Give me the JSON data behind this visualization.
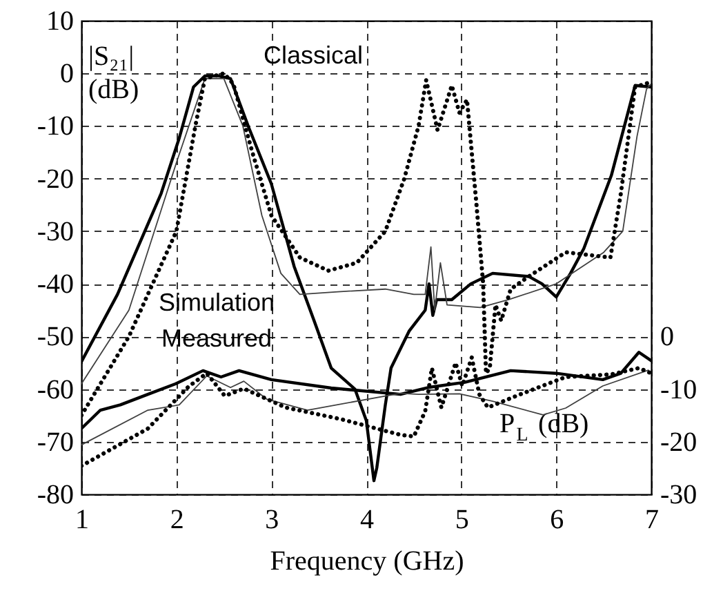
{
  "chart_data": {
    "type": "line",
    "xlabel": "Frequency (GHz)",
    "ylabel": "|S₂₁| (dB)",
    "y2label": "P$_{L}$ (dB)",
    "xlim": [
      1,
      7
    ],
    "xticks": [
      {
        "value": 1,
        "label": "1"
      },
      {
        "value": 2,
        "label": "2"
      },
      {
        "value": 3,
        "label": "3"
      },
      {
        "value": 4,
        "label": "4"
      },
      {
        "value": 5,
        "label": "5"
      },
      {
        "value": 6,
        "label": "6"
      },
      {
        "value": 7,
        "label": "7"
      }
    ],
    "ylim": [
      -80,
      10
    ],
    "yticks": [
      10,
      0,
      -10,
      -20,
      -30,
      -40,
      -50,
      -60,
      -70,
      -80
    ],
    "y2lim": [
      -30,
      60
    ],
    "y2ticks": [
      0,
      -10,
      -20,
      -30
    ],
    "grid": true,
    "annotations": [
      "Classical",
      "Simulation",
      "Measured"
    ],
    "series": [
      {
        "color": "#000000",
        "line_style": "solid",
        "x": [
          1,
          1.38,
          1.84,
          2.03,
          2.18,
          2.3,
          2.45,
          2.57,
          2.76,
          3.0,
          3.24,
          3.45,
          3.63,
          3.88,
          4.0,
          4.08,
          4.11,
          4.2,
          4.26,
          4.45,
          4.62,
          4.66,
          4.7,
          4.74,
          4.9,
          5.1,
          5.33,
          5.71,
          5.85,
          6.0,
          6.15,
          6.29,
          6.58,
          6.83,
          7
        ],
        "values": [
          -54.8,
          -42,
          -22.8,
          -12.3,
          -2.6,
          -0.5,
          -0.5,
          -1,
          -10.2,
          -21,
          -36.7,
          -47,
          -56,
          -60,
          -66,
          -77.4,
          -75,
          -63,
          -56,
          -49,
          -45,
          -40,
          -46,
          -43,
          -43,
          -40,
          -38,
          -38.6,
          -40,
          -42.5,
          -38,
          -33.3,
          -19.4,
          -2.3,
          -2.6
        ]
      },
      {
        "color": "#404040",
        "line_style": "solid",
        "x": [
          1,
          1.5,
          2,
          2.3,
          2.5,
          2.7,
          2.9,
          3.1,
          3.3,
          3.7,
          4.2,
          4.5,
          4.62,
          4.68,
          4.72,
          4.78,
          4.85,
          5.2,
          5.5,
          6.0,
          6.5,
          6.7,
          6.85,
          6.95,
          7
        ],
        "values": [
          -59,
          -45,
          -17,
          -1,
          -1,
          -10,
          -27,
          -38,
          -42,
          -41.5,
          -41,
          -42,
          -42,
          -33,
          -45,
          -36,
          -44,
          -44.5,
          -43,
          -40,
          -34,
          -30,
          -12,
          -3,
          -2
        ]
      },
      {
        "color": "#000000",
        "line_style": "dotted",
        "x": [
          1,
          1.5,
          2,
          2.2,
          2.3,
          2.5,
          2.6,
          2.8,
          3.0,
          3.3,
          3.6,
          3.9,
          4.2,
          4.4,
          4.55,
          4.63,
          4.75,
          4.9,
          4.98,
          5.06,
          5.16,
          5.23,
          5.26,
          5.3,
          5.36,
          5.42,
          5.52,
          5.71,
          6.1,
          6.57,
          6.68,
          6.83,
          6.97
        ],
        "values": [
          -65,
          -50,
          -30,
          -10,
          -1,
          0,
          -2,
          -15,
          -27,
          -35,
          -37.5,
          -36,
          -30,
          -20,
          -10,
          -1.3,
          -10.8,
          -2.3,
          -7.5,
          -5,
          -25,
          -40,
          -57,
          -56,
          -44,
          -47,
          -41,
          -38.6,
          -34,
          -35,
          -22.8,
          -2.6,
          -1.8
        ]
      },
      {
        "color": "#000000",
        "line_style": "solid",
        "axis": "y2",
        "x": [
          1,
          1.2,
          1.41,
          1.7,
          1.99,
          2.28,
          2.47,
          2.66,
          3.0,
          3.63,
          4.36,
          4.65,
          5.04,
          5.52,
          6.0,
          6.49,
          6.68,
          6.87,
          7
        ],
        "values": [
          -17.5,
          -14,
          -13,
          -11,
          -9,
          -6.5,
          -7.7,
          -6.5,
          -8.2,
          -9.8,
          -11,
          -9.7,
          -8.7,
          -6.5,
          -7,
          -8.2,
          -7,
          -3,
          -4.6
        ]
      },
      {
        "color": "#404040",
        "line_style": "solid",
        "axis": "y2",
        "x": [
          1,
          1.7,
          2.03,
          2.32,
          2.57,
          2.71,
          2.95,
          3.38,
          4.36,
          4.55,
          4.98,
          5.33,
          5.86,
          6.1,
          6.49,
          6.97
        ],
        "values": [
          -20.6,
          -14,
          -13,
          -7.5,
          -9.7,
          -8.5,
          -11.9,
          -14,
          -10.8,
          -11,
          -10.9,
          -12.3,
          -14.9,
          -13.6,
          -9.4,
          -6.4
        ]
      },
      {
        "color": "#000000",
        "line_style": "dotted",
        "axis": "y2",
        "x": [
          1,
          1.7,
          2.13,
          2.32,
          2.51,
          2.71,
          3.15,
          3.73,
          4.36,
          4.5,
          4.62,
          4.69,
          4.79,
          4.94,
          5.01,
          5.11,
          5.19,
          5.28,
          5.62,
          6.1,
          6.58,
          6.87,
          7
        ],
        "values": [
          -24.6,
          -17.5,
          -9.5,
          -7,
          -11.3,
          -9.9,
          -13.5,
          -15.7,
          -18.7,
          -19,
          -14.2,
          -6,
          -13.5,
          -5,
          -9.4,
          -4,
          -11,
          -13.5,
          -11,
          -7.7,
          -7.2,
          -6,
          -7
        ]
      }
    ]
  }
}
